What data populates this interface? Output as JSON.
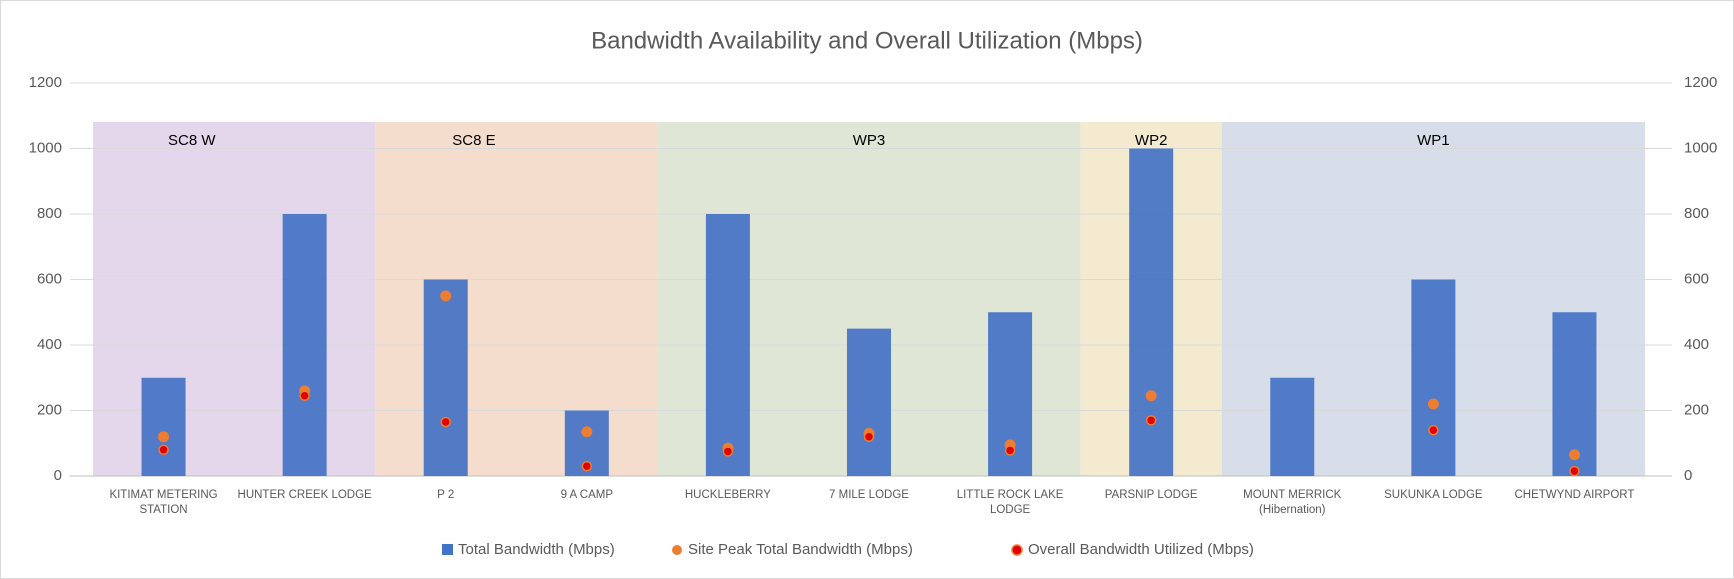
{
  "chart_data": {
    "type": "bar",
    "title": "Bandwidth Availability and Overall Utilization (Mbps)",
    "categories": [
      "KITIMAT METERING STATION",
      "HUNTER CREEK LODGE",
      "P 2",
      "9 A CAMP",
      "HUCKLEBERRY",
      "7 MILE LODGE",
      "LITTLE ROCK LAKE LODGE",
      "PARSNIP LODGE",
      "MOUNT MERRICK (Hibernation)",
      "SUKUNKA LODGE",
      "CHETWYND AIRPORT"
    ],
    "series": [
      {
        "name": "Total Bandwidth (Mbps)",
        "type": "bar",
        "color": "#4472c4",
        "values": [
          300,
          800,
          600,
          200,
          800,
          450,
          500,
          1000,
          300,
          600,
          500
        ]
      },
      {
        "name": "Site Peak Total Bandwidth (Mbps)",
        "type": "scatter",
        "color": "#ed7d31",
        "values": [
          120,
          260,
          550,
          135,
          85,
          130,
          95,
          245,
          null,
          220,
          65
        ]
      },
      {
        "name": "Overall Bandwidth Utilized (Mbps)",
        "type": "scatter",
        "color": "#e00000",
        "values": [
          80,
          245,
          165,
          30,
          75,
          120,
          78,
          170,
          null,
          140,
          15
        ]
      }
    ],
    "regions": [
      {
        "label": "SC8 W",
        "span": 2,
        "color": "#e4d7ec"
      },
      {
        "label": "SC8 E",
        "span": 2,
        "color": "#f5ddcd"
      },
      {
        "label": "WP3",
        "span": 3,
        "color": "#dfe6d6"
      },
      {
        "label": "WP2",
        "span": 1,
        "color": "#f4ead0"
      },
      {
        "label": "WP1",
        "span": 3,
        "color": "#d7dde9"
      }
    ],
    "ylim": [
      0,
      1200
    ],
    "yticks": [
      0,
      200,
      400,
      600,
      800,
      1000,
      1200
    ],
    "y2lim": [
      0,
      1200
    ],
    "y2ticks": [
      0,
      200,
      400,
      600,
      800,
      1000,
      1200
    ],
    "grid": true,
    "legend": "bottom"
  }
}
